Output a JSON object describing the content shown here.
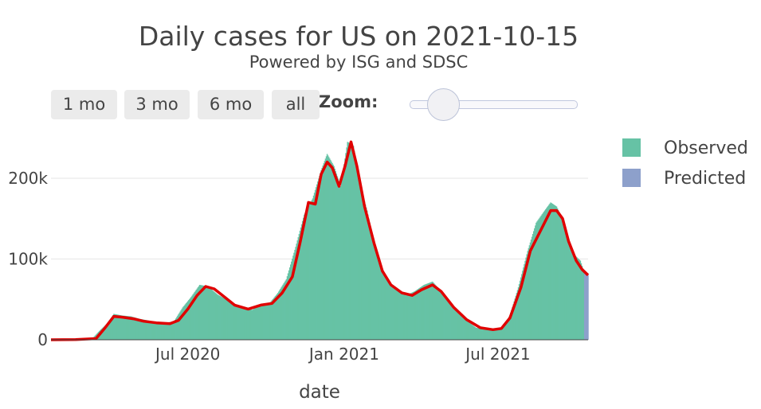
{
  "title": "Daily cases for US on 2021-10-15",
  "subtitle": "Powered by ISG and SDSC",
  "buttons": [
    "1 mo",
    "3 mo",
    "6 mo",
    "all"
  ],
  "zoom_label": "Zoom:",
  "slider_level": 0.2,
  "colors": {
    "observed": "#66c2a5",
    "predicted": "#8da0cb",
    "trend": "#e00000",
    "grid": "#e6e6e6"
  },
  "chart_data": {
    "type": "bar",
    "title": "Daily cases for US on 2021-10-15",
    "subtitle": "Powered by ISG and SDSC",
    "xlabel": "date",
    "ylabel": "",
    "x_range": [
      "2020-01-22",
      "2021-10-15"
    ],
    "ylim": [
      0,
      265000
    ],
    "grid": true,
    "legend_placement": "right",
    "y_ticks": [
      {
        "value": 0,
        "label": "0"
      },
      {
        "value": 100000,
        "label": "100k"
      },
      {
        "value": 200000,
        "label": "200k"
      }
    ],
    "x_ticks": [
      {
        "date": "2020-07-01",
        "label": "Jul 2020"
      },
      {
        "date": "2021-01-01",
        "label": "Jan 2021"
      },
      {
        "date": "2021-07-01",
        "label": "Jul 2021"
      }
    ],
    "series": [
      {
        "name": "Observed",
        "kind": "bar",
        "points": [
          [
            "2020-01-22",
            0
          ],
          [
            "2020-02-15",
            0
          ],
          [
            "2020-03-10",
            800
          ],
          [
            "2020-03-20",
            12000
          ],
          [
            "2020-03-28",
            20000
          ],
          [
            "2020-04-05",
            32000
          ],
          [
            "2020-04-15",
            30000
          ],
          [
            "2020-04-25",
            29000
          ],
          [
            "2020-05-05",
            26000
          ],
          [
            "2020-05-15",
            24000
          ],
          [
            "2020-05-25",
            21000
          ],
          [
            "2020-06-05",
            21000
          ],
          [
            "2020-06-15",
            23000
          ],
          [
            "2020-06-25",
            40000
          ],
          [
            "2020-07-05",
            53000
          ],
          [
            "2020-07-15",
            68000
          ],
          [
            "2020-07-25",
            66000
          ],
          [
            "2020-08-05",
            56000
          ],
          [
            "2020-08-15",
            50000
          ],
          [
            "2020-08-25",
            42000
          ],
          [
            "2020-09-05",
            40000
          ],
          [
            "2020-09-15",
            37000
          ],
          [
            "2020-09-25",
            44000
          ],
          [
            "2020-10-05",
            45000
          ],
          [
            "2020-10-15",
            58000
          ],
          [
            "2020-10-25",
            75000
          ],
          [
            "2020-11-05",
            115000
          ],
          [
            "2020-11-15",
            155000
          ],
          [
            "2020-11-25",
            175000
          ],
          [
            "2020-12-05",
            210000
          ],
          [
            "2020-12-12",
            230000
          ],
          [
            "2020-12-20",
            215000
          ],
          [
            "2020-12-28",
            190000
          ],
          [
            "2021-01-05",
            245000
          ],
          [
            "2021-01-12",
            240000
          ],
          [
            "2021-01-20",
            190000
          ],
          [
            "2021-01-28",
            160000
          ],
          [
            "2021-02-05",
            120000
          ],
          [
            "2021-02-15",
            85000
          ],
          [
            "2021-02-25",
            68000
          ],
          [
            "2021-03-05",
            60000
          ],
          [
            "2021-03-15",
            55000
          ],
          [
            "2021-03-25",
            60000
          ],
          [
            "2021-04-05",
            68000
          ],
          [
            "2021-04-15",
            72000
          ],
          [
            "2021-04-25",
            60000
          ],
          [
            "2021-05-05",
            45000
          ],
          [
            "2021-05-15",
            33000
          ],
          [
            "2021-05-25",
            24000
          ],
          [
            "2021-06-05",
            15000
          ],
          [
            "2021-06-15",
            13000
          ],
          [
            "2021-06-25",
            12000
          ],
          [
            "2021-07-05",
            14000
          ],
          [
            "2021-07-15",
            30000
          ],
          [
            "2021-07-25",
            65000
          ],
          [
            "2021-08-05",
            110000
          ],
          [
            "2021-08-15",
            145000
          ],
          [
            "2021-08-25",
            160000
          ],
          [
            "2021-09-01",
            170000
          ],
          [
            "2021-09-08",
            165000
          ],
          [
            "2021-09-15",
            150000
          ],
          [
            "2021-09-22",
            125000
          ],
          [
            "2021-09-29",
            105000
          ],
          [
            "2021-10-06",
            98000
          ],
          [
            "2021-10-10",
            85000
          ]
        ]
      },
      {
        "name": "Predicted",
        "kind": "bar",
        "points": [
          [
            "2021-10-11",
            84000
          ],
          [
            "2021-10-12",
            83000
          ],
          [
            "2021-10-13",
            82000
          ],
          [
            "2021-10-14",
            81000
          ],
          [
            "2021-10-15",
            80000
          ]
        ]
      },
      {
        "name": "",
        "kind": "line",
        "points": [
          [
            "2020-01-22",
            0
          ],
          [
            "2020-02-20",
            200
          ],
          [
            "2020-03-15",
            1500
          ],
          [
            "2020-03-25",
            14000
          ],
          [
            "2020-04-05",
            29000
          ],
          [
            "2020-04-15",
            28000
          ],
          [
            "2020-04-28",
            26000
          ],
          [
            "2020-05-10",
            23000
          ],
          [
            "2020-05-25",
            21000
          ],
          [
            "2020-06-10",
            20000
          ],
          [
            "2020-06-20",
            24000
          ],
          [
            "2020-07-01",
            38000
          ],
          [
            "2020-07-12",
            55000
          ],
          [
            "2020-07-22",
            66000
          ],
          [
            "2020-08-01",
            63000
          ],
          [
            "2020-08-12",
            54000
          ],
          [
            "2020-08-25",
            43000
          ],
          [
            "2020-09-10",
            38000
          ],
          [
            "2020-09-25",
            43000
          ],
          [
            "2020-10-08",
            45000
          ],
          [
            "2020-10-20",
            58000
          ],
          [
            "2020-11-01",
            78000
          ],
          [
            "2020-11-10",
            120000
          ],
          [
            "2020-11-20",
            170000
          ],
          [
            "2020-11-28",
            168000
          ],
          [
            "2020-12-05",
            205000
          ],
          [
            "2020-12-12",
            220000
          ],
          [
            "2020-12-18",
            213000
          ],
          [
            "2020-12-26",
            190000
          ],
          [
            "2021-01-02",
            215000
          ],
          [
            "2021-01-09",
            245000
          ],
          [
            "2021-01-16",
            215000
          ],
          [
            "2021-01-25",
            165000
          ],
          [
            "2021-02-05",
            120000
          ],
          [
            "2021-02-15",
            85000
          ],
          [
            "2021-02-25",
            68000
          ],
          [
            "2021-03-10",
            58000
          ],
          [
            "2021-03-22",
            55000
          ],
          [
            "2021-04-02",
            62000
          ],
          [
            "2021-04-15",
            68000
          ],
          [
            "2021-04-25",
            60000
          ],
          [
            "2021-05-10",
            40000
          ],
          [
            "2021-05-25",
            25000
          ],
          [
            "2021-06-10",
            15000
          ],
          [
            "2021-06-25",
            12500
          ],
          [
            "2021-07-05",
            14000
          ],
          [
            "2021-07-15",
            27000
          ],
          [
            "2021-07-28",
            65000
          ],
          [
            "2021-08-08",
            110000
          ],
          [
            "2021-08-20",
            135000
          ],
          [
            "2021-09-01",
            160000
          ],
          [
            "2021-09-08",
            160000
          ],
          [
            "2021-09-15",
            150000
          ],
          [
            "2021-09-22",
            122000
          ],
          [
            "2021-10-01",
            98000
          ],
          [
            "2021-10-08",
            87000
          ],
          [
            "2021-10-15",
            80000
          ]
        ]
      }
    ],
    "legend": [
      {
        "name": "Observed",
        "color": "#66c2a5"
      },
      {
        "name": "Predicted",
        "color": "#8da0cb"
      }
    ]
  }
}
